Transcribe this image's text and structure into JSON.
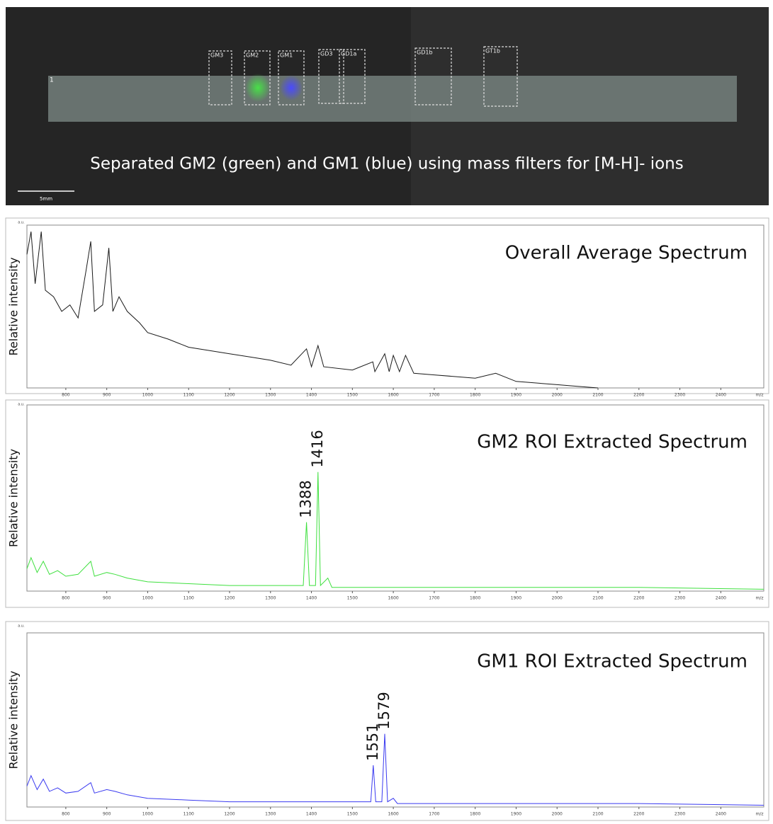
{
  "image_panel": {
    "caption": "Separated GM2 (green) and GM1 (blue) using mass filters for [M-H]- ions",
    "lane_label": "1",
    "scale_label": "5mm",
    "rois": [
      "GM3",
      "GM2",
      "GM1",
      "GD3",
      "GD1a",
      "GD1b",
      "GT1b"
    ]
  },
  "chart_data": [
    {
      "type": "line",
      "title": "Overall Average Spectrum",
      "y_label": "Relative intensity",
      "x_unit": "m/z",
      "y_unit": "a.u.",
      "color": "#1a1a1a",
      "x": [
        705,
        715,
        725,
        740,
        750,
        770,
        790,
        810,
        830,
        850,
        861,
        870,
        890,
        905,
        915,
        930,
        950,
        980,
        1000,
        1050,
        1100,
        1150,
        1200,
        1250,
        1300,
        1350,
        1388,
        1400,
        1416,
        1430,
        1500,
        1550,
        1555,
        1579,
        1590,
        1600,
        1615,
        1630,
        1650,
        1700,
        1800,
        1850,
        1900,
        2000,
        2050,
        2100
      ],
      "values": [
        82,
        96,
        64,
        96,
        60,
        56,
        47,
        51,
        43,
        73,
        90,
        47,
        51,
        86,
        47,
        56,
        47,
        40,
        34,
        30,
        25,
        23,
        21,
        19,
        17,
        14,
        24,
        13,
        26,
        13,
        11,
        16,
        10,
        21,
        10,
        20,
        10,
        20,
        9,
        8,
        6,
        9,
        4,
        2,
        1,
        0
      ],
      "xlim": [
        705,
        2505
      ],
      "ylim": [
        0,
        100
      ],
      "xticks": [
        800,
        900,
        1000,
        1100,
        1200,
        1300,
        1400,
        1500,
        1600,
        1700,
        1800,
        1900,
        2000,
        2100,
        2200,
        2300,
        2400
      ],
      "annotations": []
    },
    {
      "type": "line",
      "title": "GM2 ROI Extracted Spectrum",
      "y_label": "Relative intensity",
      "x_unit": "m/z",
      "y_unit": "a.u.",
      "color": "#3ee03e",
      "x": [
        705,
        715,
        730,
        745,
        760,
        780,
        800,
        830,
        861,
        870,
        900,
        920,
        950,
        1000,
        1100,
        1200,
        1300,
        1380,
        1388,
        1395,
        1410,
        1416,
        1422,
        1440,
        1450,
        1600,
        1800,
        2000,
        2200,
        2505
      ],
      "values": [
        12,
        18,
        10,
        16,
        9,
        11,
        8,
        9,
        16,
        8,
        10,
        9,
        7,
        5,
        4,
        3,
        3,
        3,
        37,
        3,
        3,
        64,
        3,
        7,
        2,
        2,
        2,
        2,
        2,
        1
      ],
      "xlim": [
        705,
        2505
      ],
      "ylim": [
        0,
        100
      ],
      "xticks": [
        800,
        900,
        1000,
        1100,
        1200,
        1300,
        1400,
        1500,
        1600,
        1700,
        1800,
        1900,
        2000,
        2100,
        2200,
        2300,
        2400
      ],
      "annotations": [
        {
          "x": 1388,
          "y": 37
        },
        {
          "x": 1416,
          "y": 64
        }
      ]
    },
    {
      "type": "line",
      "title": "GM1 ROI Extracted Spectrum",
      "y_label": "Relative intensity",
      "x_unit": "m/z",
      "y_unit": "a.u.",
      "color": "#3a3af0",
      "x": [
        705,
        715,
        730,
        745,
        760,
        780,
        800,
        830,
        861,
        870,
        900,
        920,
        950,
        1000,
        1100,
        1200,
        1300,
        1400,
        1500,
        1545,
        1551,
        1557,
        1572,
        1579,
        1586,
        1600,
        1610,
        1800,
        2000,
        2200,
        2505
      ],
      "values": [
        12,
        18,
        10,
        16,
        9,
        11,
        8,
        9,
        14,
        8,
        10,
        9,
        7,
        5,
        4,
        3,
        3,
        3,
        3,
        3,
        24,
        3,
        3,
        42,
        3,
        5,
        2,
        2,
        2,
        2,
        1
      ],
      "xlim": [
        705,
        2505
      ],
      "ylim": [
        0,
        100
      ],
      "xticks": [
        800,
        900,
        1000,
        1100,
        1200,
        1300,
        1400,
        1500,
        1600,
        1700,
        1800,
        1900,
        2000,
        2100,
        2200,
        2300,
        2400
      ],
      "annotations": [
        {
          "x": 1551,
          "y": 24
        },
        {
          "x": 1579,
          "y": 42
        }
      ]
    }
  ]
}
